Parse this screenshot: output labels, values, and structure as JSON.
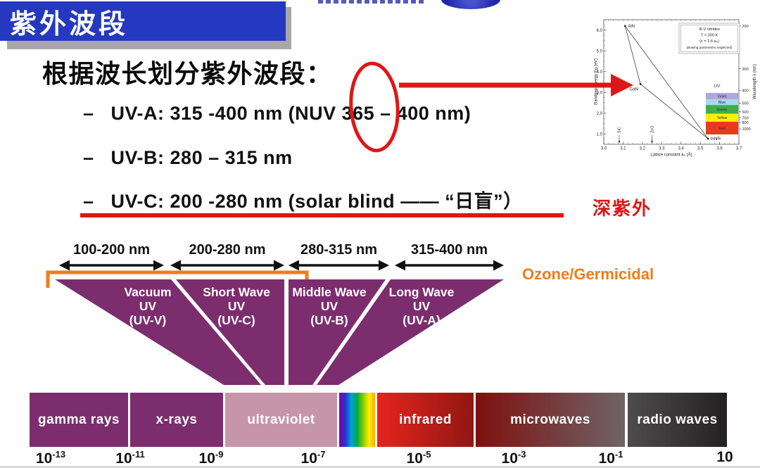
{
  "slide": {
    "banner_title": "紫外波段",
    "heading": "根据波长划分紫外波段：",
    "bullet_dash": "–",
    "bullets": [
      "UV-A: 315 -400 nm (NUV 365 – 400 nm)",
      "UV-B: 280 – 315 nm",
      "UV-C: 200 -280 nm (solar blind —— “日盲”）"
    ],
    "deep_uv_label": "深紫外",
    "colors": {
      "banner_blue": "#2438c0",
      "shadow_gray": "#a8a8a8",
      "accent_red": "#dd1717",
      "orange": "#ee7d1a",
      "purple": "#7b2d6e"
    }
  },
  "band_diagram": {
    "ranges": [
      {
        "label": "100-200 nm"
      },
      {
        "label": "200-280 nm"
      },
      {
        "label": "280-315 nm"
      },
      {
        "label": "315-400 nm"
      }
    ],
    "bracket_label": "Ozone/Germicidal",
    "wedges": [
      {
        "lines": [
          "Vacuum",
          "UV",
          "(UV-V)"
        ]
      },
      {
        "lines": [
          "Short Wave",
          "UV",
          "(UV-C)"
        ]
      },
      {
        "lines": [
          "Middle Wave",
          "UV",
          "(UV-B)"
        ]
      },
      {
        "lines": [
          "Long Wave",
          "UV",
          "(UV-A)"
        ]
      }
    ]
  },
  "spectrum_bar": {
    "segments": [
      {
        "label": "gamma rays",
        "colors": [
          "#7b2d6e"
        ]
      },
      {
        "label": "x-rays",
        "colors": [
          "#7b2d6e"
        ]
      },
      {
        "label": "ultraviolet",
        "colors": [
          "#c795a9"
        ]
      },
      {
        "label": "",
        "name": "visible-light",
        "colors": [
          "#8800a8",
          "#2233cc",
          "#00a0dd",
          "#00aa44",
          "#88cc00",
          "#ffee00",
          "#ffaa00"
        ]
      },
      {
        "label": "infrared",
        "colors": [
          "#e6231e",
          "#901712"
        ]
      },
      {
        "label": "microwaves",
        "colors": [
          "#7e100f",
          "#6e6467"
        ]
      },
      {
        "label": "radio waves",
        "colors": [
          "#4d4b4c",
          "#232122"
        ]
      }
    ],
    "ticks": [
      {
        "base": "10",
        "exp": "-13"
      },
      {
        "base": "10",
        "exp": "-11"
      },
      {
        "base": "10",
        "exp": "-9"
      },
      {
        "base": "10",
        "exp": "-7"
      },
      {
        "base": "10",
        "exp": "-5"
      },
      {
        "base": "10",
        "exp": "-3"
      },
      {
        "base": "10",
        "exp": "-1"
      },
      {
        "base": "10",
        "exp": ""
      }
    ]
  },
  "chart_data": {
    "type": "scatter",
    "description": "Bandgap energy vs lattice constant of III-V nitrides",
    "xlabel": "Lattice constant a₀ (Å)",
    "ylabel": "Bandgap energy Eg (eV)",
    "y2label": "Wavelength λ (nm)",
    "xlim": [
      3.0,
      3.7
    ],
    "ylim": [
      0.5,
      6.5
    ],
    "x_ticks": [
      3.0,
      3.1,
      3.2,
      3.3,
      3.4,
      3.5,
      3.6,
      3.7
    ],
    "y_ticks": [
      1.0,
      2.0,
      3.0,
      4.0,
      5.0,
      6.0
    ],
    "points": [
      {
        "label": "AlN",
        "x": 3.11,
        "y": 6.2
      },
      {
        "label": "GaN",
        "x": 3.19,
        "y": 3.4
      },
      {
        "label": "InN",
        "x": 3.54,
        "y": 0.77
      }
    ],
    "edges": [
      [
        0,
        1
      ],
      [
        0,
        2
      ],
      [
        1,
        2
      ]
    ],
    "substrates": [
      {
        "label": "SiC",
        "x": 3.08
      },
      {
        "label": "ZnO",
        "x": 3.25
      }
    ],
    "annotation_box": [
      "III-V nitrides",
      "T = 300 K",
      "(c = 1.6 a₀)",
      "(Bowing parameters neglected)"
    ],
    "wavelength_ticks_nm": [
      200,
      300,
      400,
      500,
      600,
      700,
      800,
      1000
    ],
    "color_bands": [
      {
        "label": "Violet",
        "color": "#b4a6d8",
        "nm": [
          400,
          455
        ]
      },
      {
        "label": "Blue",
        "color": "#a9d9e9",
        "nm": [
          455,
          505
        ]
      },
      {
        "label": "Green",
        "color": "#41ad4b",
        "nm": [
          505,
          580
        ]
      },
      {
        "label": "Yellow",
        "color": "#ffee00",
        "nm": [
          580,
          650
        ]
      },
      {
        "label": "Red",
        "color": "#e63c1c",
        "nm": [
          650,
          760
        ]
      }
    ],
    "region_labels": [
      "UV",
      "IR"
    ]
  }
}
